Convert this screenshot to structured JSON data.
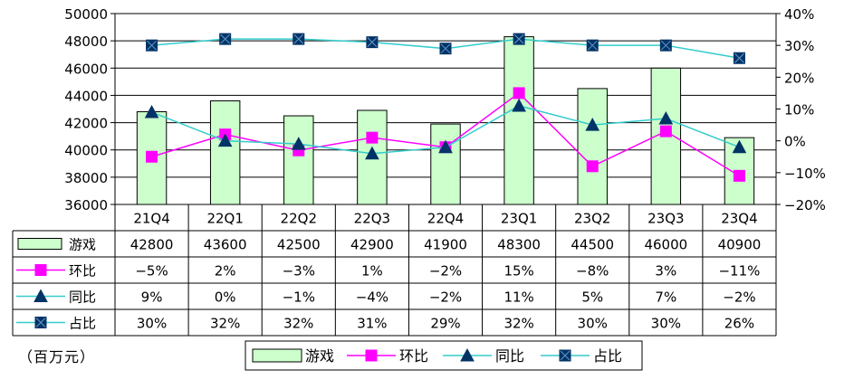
{
  "chart_data": {
    "type": "bar+line",
    "categories": [
      "21Q4",
      "22Q1",
      "22Q2",
      "22Q3",
      "22Q4",
      "23Q1",
      "23Q2",
      "23Q3",
      "23Q4"
    ],
    "bar_series": {
      "name": "游戏",
      "values": [
        42800,
        43600,
        42500,
        42900,
        41900,
        48300,
        44500,
        46000,
        40900
      ],
      "color": "#ccffcc",
      "axis": "left"
    },
    "line_series": [
      {
        "name": "环比",
        "values": [
          -5,
          2,
          -3,
          1,
          -2,
          15,
          -8,
          3,
          -11
        ],
        "labels": [
          "−5%",
          "2%",
          "−3%",
          "1%",
          "−2%",
          "15%",
          "−8%",
          "3%",
          "−11%"
        ],
        "color": "#ff00ff",
        "marker": "square",
        "axis": "right"
      },
      {
        "name": "同比",
        "values": [
          9,
          0,
          -1,
          -4,
          -2,
          11,
          5,
          7,
          -2
        ],
        "labels": [
          "9%",
          "0%",
          "−1%",
          "−4%",
          "−2%",
          "11%",
          "5%",
          "7%",
          "−2%"
        ],
        "color": "#33cccc",
        "marker": "triangle",
        "axis": "right"
      },
      {
        "name": "占比",
        "values": [
          30,
          32,
          32,
          31,
          29,
          32,
          30,
          30,
          26
        ],
        "labels": [
          "30%",
          "32%",
          "32%",
          "31%",
          "29%",
          "32%",
          "30%",
          "30%",
          "26%"
        ],
        "color": "#33cccc",
        "marker": "boxed-x",
        "axis": "right"
      }
    ],
    "left_axis": {
      "min": 36000,
      "max": 50000,
      "step": 2000,
      "ticks": [
        "36000",
        "38000",
        "40000",
        "42000",
        "44000",
        "46000",
        "48000",
        "50000"
      ]
    },
    "right_axis": {
      "min": -20,
      "max": 40,
      "step": 10,
      "ticks": [
        "−20%",
        "−10%",
        "0%",
        "10%",
        "20%",
        "30%",
        "40%"
      ]
    },
    "unit": "（百万元）",
    "legend": [
      "游戏",
      "环比",
      "同比",
      "占比"
    ],
    "legend_placement": "bottom"
  }
}
